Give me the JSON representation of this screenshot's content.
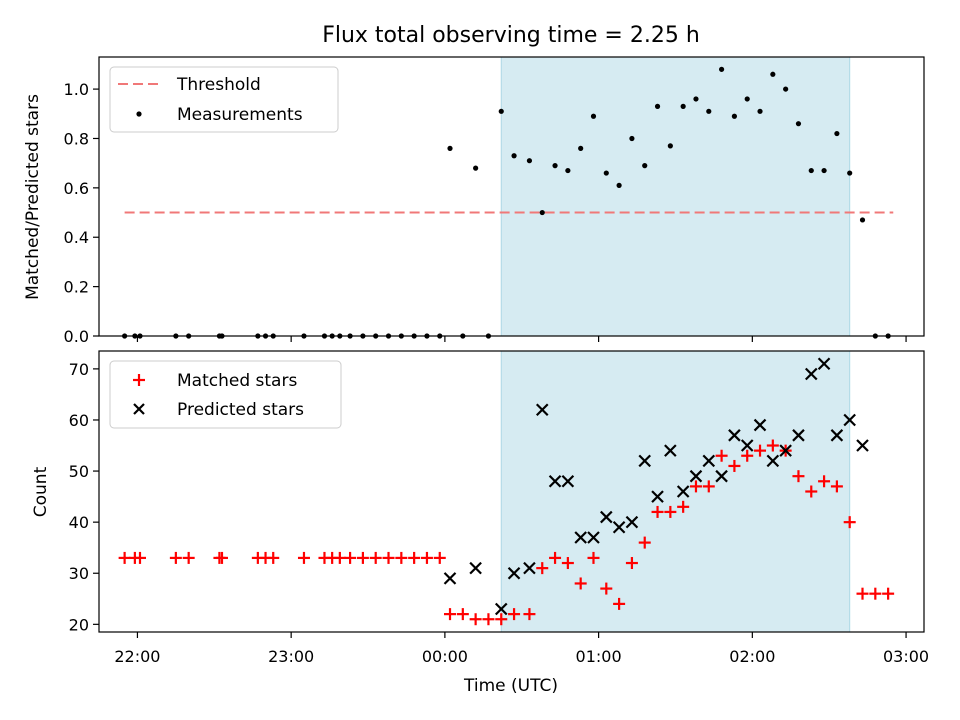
{
  "title": "Flux total observing time = 2.25 h",
  "chart_data": [
    {
      "type": "scatter",
      "ylabel": "Matched/Predicted stars",
      "ylim": [
        0,
        1.13
      ],
      "yticks": [
        "0.0",
        "0.2",
        "0.4",
        "0.6",
        "0.8",
        "1.0"
      ],
      "legend_position": "top-left",
      "threshold": {
        "name": "Threshold",
        "color": "#f07878",
        "value": 0.5,
        "x_range": [
          "21:55",
          "02:55"
        ]
      },
      "shaded_span": {
        "from": "00:22",
        "to": "02:38",
        "color": "#add8e6"
      },
      "series": [
        {
          "name": "Measurements",
          "marker": "dot",
          "color": "#000000",
          "points": [
            [
              "21:55",
              0
            ],
            [
              "21:59",
              0
            ],
            [
              "22:01",
              0
            ],
            [
              "22:15",
              0
            ],
            [
              "22:20",
              0
            ],
            [
              "22:32",
              0
            ],
            [
              "22:33",
              0
            ],
            [
              "22:47",
              0
            ],
            [
              "22:50",
              0
            ],
            [
              "22:53",
              0
            ],
            [
              "23:05",
              0
            ],
            [
              "23:13",
              0
            ],
            [
              "23:16",
              0
            ],
            [
              "23:19",
              0
            ],
            [
              "23:23",
              0
            ],
            [
              "23:28",
              0
            ],
            [
              "23:33",
              0
            ],
            [
              "23:38",
              0
            ],
            [
              "23:43",
              0
            ],
            [
              "23:48",
              0
            ],
            [
              "23:53",
              0
            ],
            [
              "23:58",
              0
            ],
            [
              "00:02",
              0.76
            ],
            [
              "00:07",
              0
            ],
            [
              "00:12",
              0.68
            ],
            [
              "00:17",
              0
            ],
            [
              "00:22",
              0.91
            ],
            [
              "00:27",
              0.73
            ],
            [
              "00:33",
              0.71
            ],
            [
              "00:38",
              0.5
            ],
            [
              "00:43",
              0.69
            ],
            [
              "00:48",
              0.67
            ],
            [
              "00:53",
              0.76
            ],
            [
              "00:58",
              0.89
            ],
            [
              "01:03",
              0.66
            ],
            [
              "01:08",
              0.61
            ],
            [
              "01:13",
              0.8
            ],
            [
              "01:18",
              0.69
            ],
            [
              "01:23",
              0.93
            ],
            [
              "01:28",
              0.77
            ],
            [
              "01:33",
              0.93
            ],
            [
              "01:38",
              0.96
            ],
            [
              "01:43",
              0.91
            ],
            [
              "01:48",
              1.08
            ],
            [
              "01:53",
              0.89
            ],
            [
              "01:58",
              0.96
            ],
            [
              "02:03",
              0.91
            ],
            [
              "02:08",
              1.06
            ],
            [
              "02:13",
              1.0
            ],
            [
              "02:18",
              0.86
            ],
            [
              "02:23",
              0.67
            ],
            [
              "02:28",
              0.67
            ],
            [
              "02:33",
              0.82
            ],
            [
              "02:38",
              0.66
            ],
            [
              "02:43",
              0.47
            ],
            [
              "02:48",
              0
            ],
            [
              "02:53",
              0
            ]
          ]
        }
      ]
    },
    {
      "type": "scatter",
      "xlabel": "Time (UTC)",
      "ylabel": "Count",
      "xlim": [
        "21:45",
        "03:07"
      ],
      "xticks": [
        "22:00",
        "23:00",
        "00:00",
        "01:00",
        "02:00",
        "03:00"
      ],
      "ylim": [
        18.5,
        73.5
      ],
      "yticks": [
        "20",
        "30",
        "40",
        "50",
        "60",
        "70"
      ],
      "legend_position": "top-left",
      "shaded_span": {
        "from": "00:22",
        "to": "02:38",
        "color": "#add8e6"
      },
      "series": [
        {
          "name": "Matched stars",
          "marker": "plus",
          "color": "#ff0000",
          "points": [
            [
              "21:55",
              33
            ],
            [
              "21:59",
              33
            ],
            [
              "22:01",
              33
            ],
            [
              "22:15",
              33
            ],
            [
              "22:20",
              33
            ],
            [
              "22:32",
              33
            ],
            [
              "22:33",
              33
            ],
            [
              "22:47",
              33
            ],
            [
              "22:50",
              33
            ],
            [
              "22:53",
              33
            ],
            [
              "23:05",
              33
            ],
            [
              "23:13",
              33
            ],
            [
              "23:16",
              33
            ],
            [
              "23:19",
              33
            ],
            [
              "23:23",
              33
            ],
            [
              "23:28",
              33
            ],
            [
              "23:33",
              33
            ],
            [
              "23:38",
              33
            ],
            [
              "23:43",
              33
            ],
            [
              "23:48",
              33
            ],
            [
              "23:53",
              33
            ],
            [
              "23:58",
              33
            ],
            [
              "00:02",
              22
            ],
            [
              "00:07",
              22
            ],
            [
              "00:12",
              21
            ],
            [
              "00:17",
              21
            ],
            [
              "00:22",
              21
            ],
            [
              "00:27",
              22
            ],
            [
              "00:33",
              22
            ],
            [
              "00:38",
              31
            ],
            [
              "00:43",
              33
            ],
            [
              "00:48",
              32
            ],
            [
              "00:53",
              28
            ],
            [
              "00:58",
              33
            ],
            [
              "01:03",
              27
            ],
            [
              "01:08",
              24
            ],
            [
              "01:13",
              32
            ],
            [
              "01:18",
              36
            ],
            [
              "01:23",
              42
            ],
            [
              "01:28",
              42
            ],
            [
              "01:33",
              43
            ],
            [
              "01:38",
              47
            ],
            [
              "01:43",
              47
            ],
            [
              "01:48",
              53
            ],
            [
              "01:53",
              51
            ],
            [
              "01:58",
              53
            ],
            [
              "02:03",
              54
            ],
            [
              "02:08",
              55
            ],
            [
              "02:13",
              54
            ],
            [
              "02:18",
              49
            ],
            [
              "02:23",
              46
            ],
            [
              "02:28",
              48
            ],
            [
              "02:33",
              47
            ],
            [
              "02:38",
              40
            ],
            [
              "02:43",
              26
            ],
            [
              "02:48",
              26
            ],
            [
              "02:53",
              26
            ]
          ]
        },
        {
          "name": "Predicted stars",
          "marker": "x",
          "color": "#000000",
          "points": [
            [
              "00:02",
              29
            ],
            [
              "00:12",
              31
            ],
            [
              "00:22",
              23
            ],
            [
              "00:27",
              30
            ],
            [
              "00:33",
              31
            ],
            [
              "00:38",
              62
            ],
            [
              "00:43",
              48
            ],
            [
              "00:48",
              48
            ],
            [
              "00:53",
              37
            ],
            [
              "00:58",
              37
            ],
            [
              "01:03",
              41
            ],
            [
              "01:08",
              39
            ],
            [
              "01:13",
              40
            ],
            [
              "01:18",
              52
            ],
            [
              "01:23",
              45
            ],
            [
              "01:28",
              54
            ],
            [
              "01:33",
              46
            ],
            [
              "01:38",
              49
            ],
            [
              "01:43",
              52
            ],
            [
              "01:48",
              49
            ],
            [
              "01:53",
              57
            ],
            [
              "01:58",
              55
            ],
            [
              "02:03",
              59
            ],
            [
              "02:08",
              52
            ],
            [
              "02:13",
              54
            ],
            [
              "02:18",
              57
            ],
            [
              "02:23",
              69
            ],
            [
              "02:28",
              71
            ],
            [
              "02:33",
              57
            ],
            [
              "02:38",
              60
            ],
            [
              "02:43",
              55
            ]
          ]
        }
      ]
    }
  ]
}
